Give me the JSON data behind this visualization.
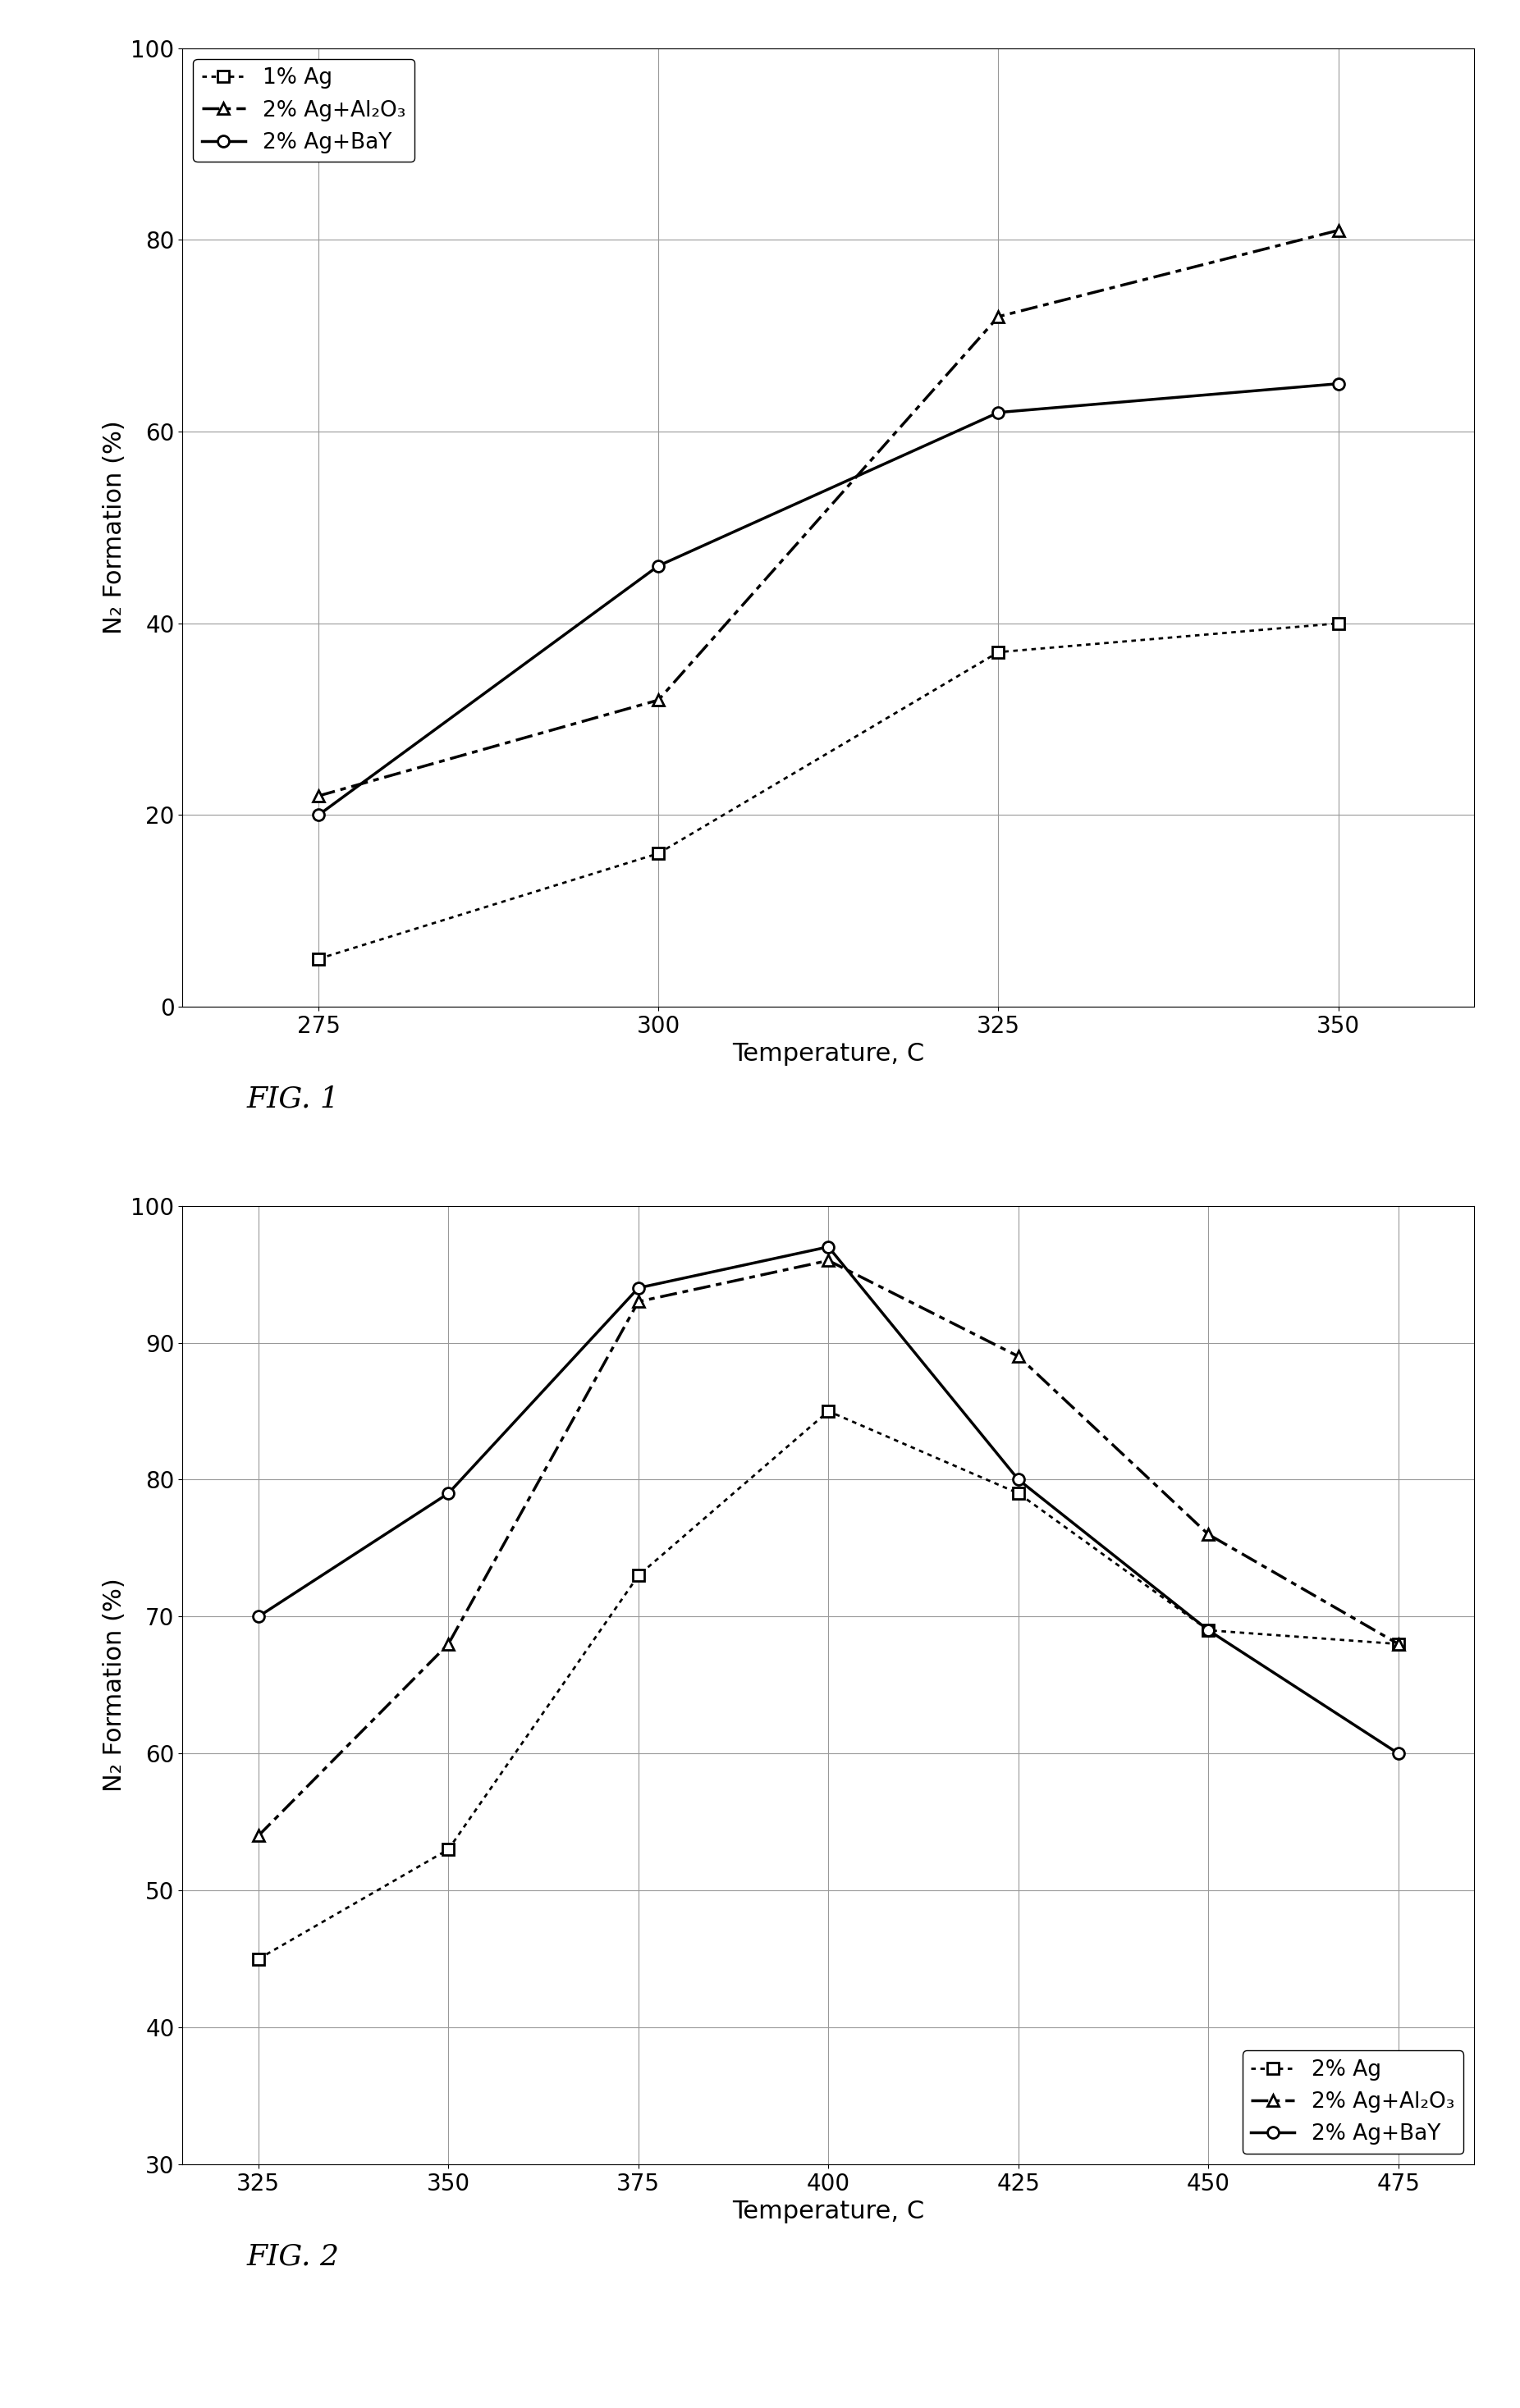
{
  "fig1": {
    "title": "",
    "xlabel": "Temperature, C",
    "ylabel": "N₂ Formation (%)",
    "xlim": [
      265,
      360
    ],
    "ylim": [
      0,
      100
    ],
    "xticks": [
      275,
      300,
      325,
      350
    ],
    "yticks": [
      0,
      20,
      40,
      60,
      80,
      100
    ],
    "series": [
      {
        "label": "1% Ag",
        "x": [
          275,
          300,
          325,
          350
        ],
        "y": [
          5,
          16,
          37,
          40
        ],
        "linestyle": "dotted",
        "marker": "s",
        "linewidth": 2.0,
        "color": "#000000"
      },
      {
        "label": "2% Ag+Al₂O₃",
        "x": [
          275,
          300,
          325,
          350
        ],
        "y": [
          22,
          32,
          72,
          81
        ],
        "linestyle": "dashdot",
        "marker": "^",
        "linewidth": 2.5,
        "color": "#000000"
      },
      {
        "label": "2% Ag+BaY",
        "x": [
          275,
          300,
          325,
          350
        ],
        "y": [
          20,
          46,
          62,
          65
        ],
        "linestyle": "solid",
        "marker": "o",
        "linewidth": 2.5,
        "color": "#000000"
      }
    ],
    "legend_loc": "upper left",
    "fig_label": "FIG. 1"
  },
  "fig2": {
    "title": "",
    "xlabel": "Temperature, C",
    "ylabel": "N₂ Formation (%)",
    "xlim": [
      315,
      485
    ],
    "ylim": [
      30,
      100
    ],
    "xticks": [
      325,
      350,
      375,
      400,
      425,
      450,
      475
    ],
    "yticks": [
      30,
      40,
      50,
      60,
      70,
      80,
      90,
      100
    ],
    "series": [
      {
        "label": "2% Ag",
        "x": [
          325,
          350,
          375,
          400,
          425,
          450,
          475
        ],
        "y": [
          45,
          53,
          73,
          85,
          79,
          69,
          68
        ],
        "linestyle": "dotted",
        "marker": "s",
        "linewidth": 2.0,
        "color": "#000000"
      },
      {
        "label": "2% Ag+Al₂O₃",
        "x": [
          325,
          350,
          375,
          400,
          425,
          450,
          475
        ],
        "y": [
          54,
          68,
          93,
          96,
          89,
          76,
          68
        ],
        "linestyle": "dashdot",
        "marker": "^",
        "linewidth": 2.5,
        "color": "#000000"
      },
      {
        "label": "2% Ag+BaY",
        "x": [
          325,
          350,
          375,
          400,
          425,
          450,
          475
        ],
        "y": [
          70,
          79,
          94,
          97,
          80,
          69,
          60
        ],
        "linestyle": "solid",
        "marker": "o",
        "linewidth": 2.5,
        "color": "#000000"
      }
    ],
    "legend_loc": "lower right",
    "fig_label": "FIG. 2"
  },
  "background_color": "#ffffff",
  "marker_size": 10,
  "font_size": 22,
  "label_font_size": 22,
  "tick_font_size": 20,
  "legend_font_size": 19
}
